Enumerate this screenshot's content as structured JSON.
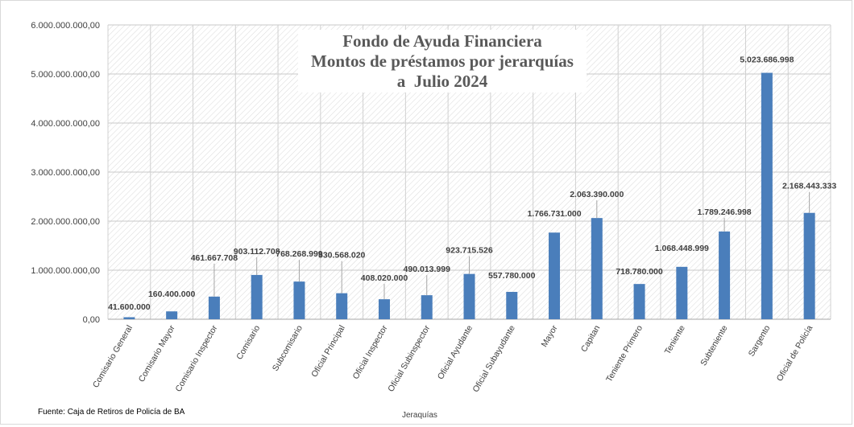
{
  "chart_data": {
    "type": "bar",
    "title_lines": [
      "Fondo de Ayuda Financiera",
      "Montos de préstamos por jerarquías",
      "a  Julio 2024"
    ],
    "xlabel": "Jeraquías",
    "ylabel": "",
    "ylim": [
      0,
      6000000000
    ],
    "yticks": [
      0,
      1000000000,
      2000000000,
      3000000000,
      4000000000,
      5000000000,
      6000000000
    ],
    "ytick_labels": [
      "0,00",
      "1.000.000.000,00",
      "2.000.000.000,00",
      "3.000.000.000,00",
      "4.000.000.000,00",
      "5.000.000.000,00",
      "6.000.000.000,00"
    ],
    "categories": [
      "Comisario General",
      "Comisario Mayor",
      "Comisario Inspector",
      "Comisario",
      "Subcomisario",
      "Oficial Principal",
      "Oficial Inspector",
      "Oficial Subinspector",
      "Oficial Ayudante",
      "Oficial Subayudante",
      "Mayor",
      "Capitan",
      "Teniente Primero",
      "Teniente",
      "Subteniente",
      "Sargento",
      "Oficial de Policía"
    ],
    "values": [
      41600000,
      160400000,
      461667708,
      903112708,
      768268999,
      530568020,
      408020000,
      490013999,
      923715526,
      557780000,
      1766731000,
      2063390000,
      718780000,
      1068448999,
      1789246998,
      5023686998,
      2168443333
    ],
    "value_labels": [
      "41.600.000",
      "160.400.000",
      "461.667.708",
      "903.112.708",
      "768.268.999",
      "530.568.020",
      "408.020.000",
      "490.013.999",
      "923.715.526",
      "557.780.000",
      "1.766.731.000",
      "2.063.390.000",
      "718.780.000",
      "1.068.448.999",
      "1.789.246.998",
      "5.023.686.998",
      "2.168.443.333"
    ],
    "bar_color": "#4a7ebb",
    "grid": true,
    "legend": "none"
  },
  "source_note": "Fuente: Caja de Retiros de Policía de BA"
}
